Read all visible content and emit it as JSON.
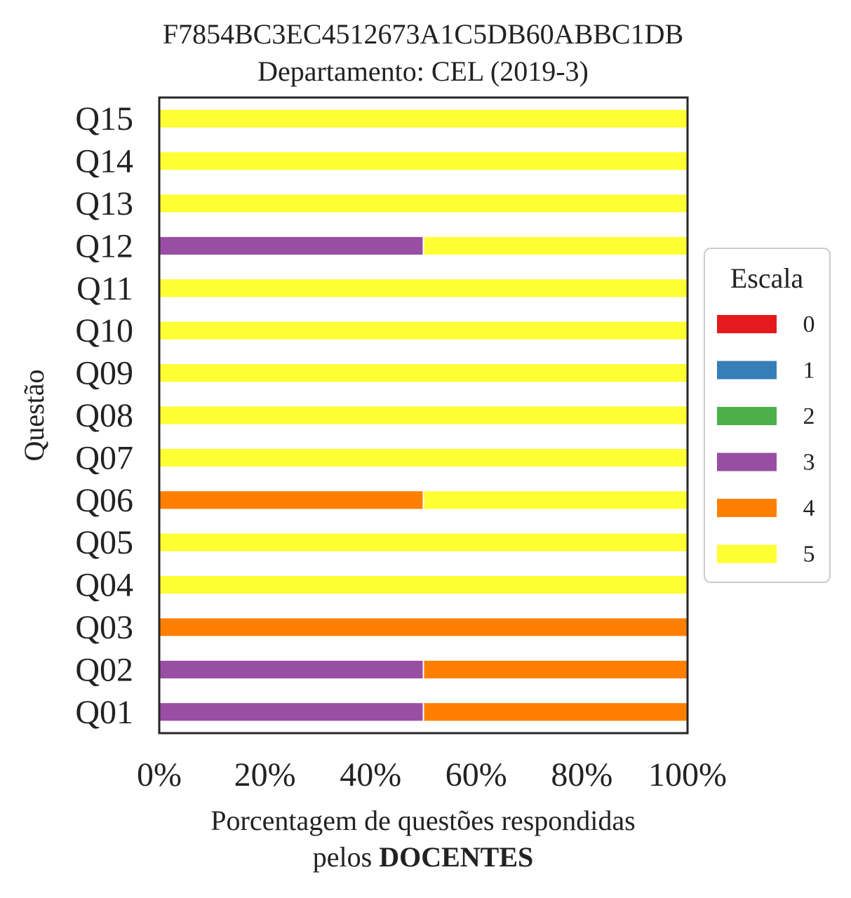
{
  "chart_data": {
    "type": "bar",
    "orientation": "horizontal",
    "stacked": true,
    "title": "F7854BC3EC4512673A1C5DB60ABBC1DB",
    "subtitle": "Departamento: CEL (2019-3)",
    "xlabel": "Porcentagem de questões respondidas",
    "xlabel_line2_prefix": "pelos ",
    "xlabel_line2_bold": "DOCENTES",
    "ylabel": "Questão",
    "xlim": [
      0,
      100
    ],
    "xticks": [
      "0%",
      "20%",
      "40%",
      "60%",
      "80%",
      "100%"
    ],
    "xtick_values": [
      0,
      20,
      40,
      60,
      80,
      100
    ],
    "categories": [
      "Q01",
      "Q02",
      "Q03",
      "Q04",
      "Q05",
      "Q06",
      "Q07",
      "Q08",
      "Q09",
      "Q10",
      "Q11",
      "Q12",
      "Q13",
      "Q14",
      "Q15"
    ],
    "series": [
      {
        "name": "0",
        "color": "#e41a1c",
        "values": [
          0,
          0,
          0,
          0,
          0,
          0,
          0,
          0,
          0,
          0,
          0,
          0,
          0,
          0,
          0
        ]
      },
      {
        "name": "1",
        "color": "#377eb8",
        "values": [
          0,
          0,
          0,
          0,
          0,
          0,
          0,
          0,
          0,
          0,
          0,
          0,
          0,
          0,
          0
        ]
      },
      {
        "name": "2",
        "color": "#4daf4a",
        "values": [
          0,
          0,
          0,
          0,
          0,
          0,
          0,
          0,
          0,
          0,
          0,
          0,
          0,
          0,
          0
        ]
      },
      {
        "name": "3",
        "color": "#984ea3",
        "values": [
          50,
          50,
          0,
          0,
          0,
          0,
          0,
          0,
          0,
          0,
          0,
          50,
          0,
          0,
          0
        ]
      },
      {
        "name": "4",
        "color": "#ff7f00",
        "values": [
          50,
          50,
          100,
          0,
          0,
          50,
          0,
          0,
          0,
          0,
          0,
          0,
          0,
          0,
          0
        ]
      },
      {
        "name": "5",
        "color": "#ffff33",
        "values": [
          0,
          0,
          0,
          100,
          100,
          50,
          100,
          100,
          100,
          100,
          100,
          50,
          100,
          100,
          100
        ]
      }
    ],
    "legend": {
      "title": "Escala",
      "position": "center-right"
    },
    "grid": false
  }
}
